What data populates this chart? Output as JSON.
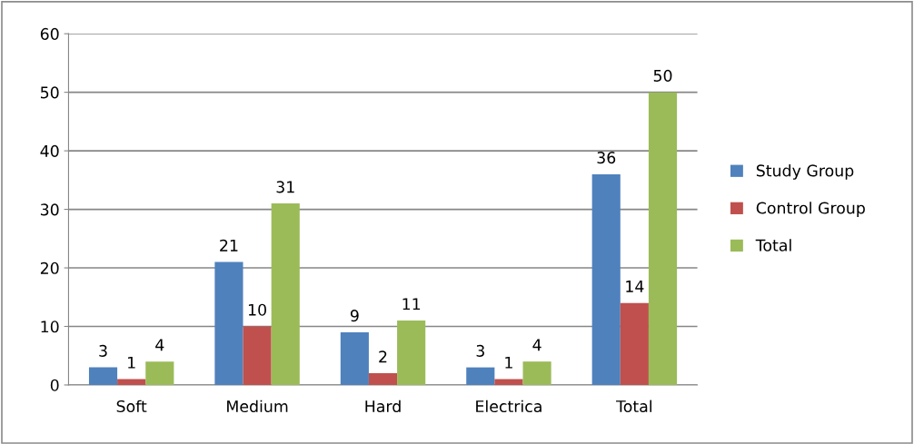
{
  "chart_data": {
    "type": "bar",
    "categories": [
      "Soft",
      "Medium",
      "Hard",
      "Electrica",
      "Total"
    ],
    "series": [
      {
        "name": "Study Group",
        "color": "#4f81bd",
        "values": [
          3,
          21,
          9,
          3,
          36
        ]
      },
      {
        "name": "Control Group",
        "color": "#c0504d",
        "values": [
          1,
          10,
          2,
          1,
          14
        ]
      },
      {
        "name": "Total",
        "color": "#9bbb59",
        "values": [
          4,
          31,
          11,
          4,
          50
        ]
      }
    ],
    "ylim": [
      0,
      60
    ],
    "yticks": [
      0,
      10,
      20,
      30,
      40,
      50,
      60
    ],
    "grid": "y",
    "legend": "right",
    "data_labels": true
  }
}
